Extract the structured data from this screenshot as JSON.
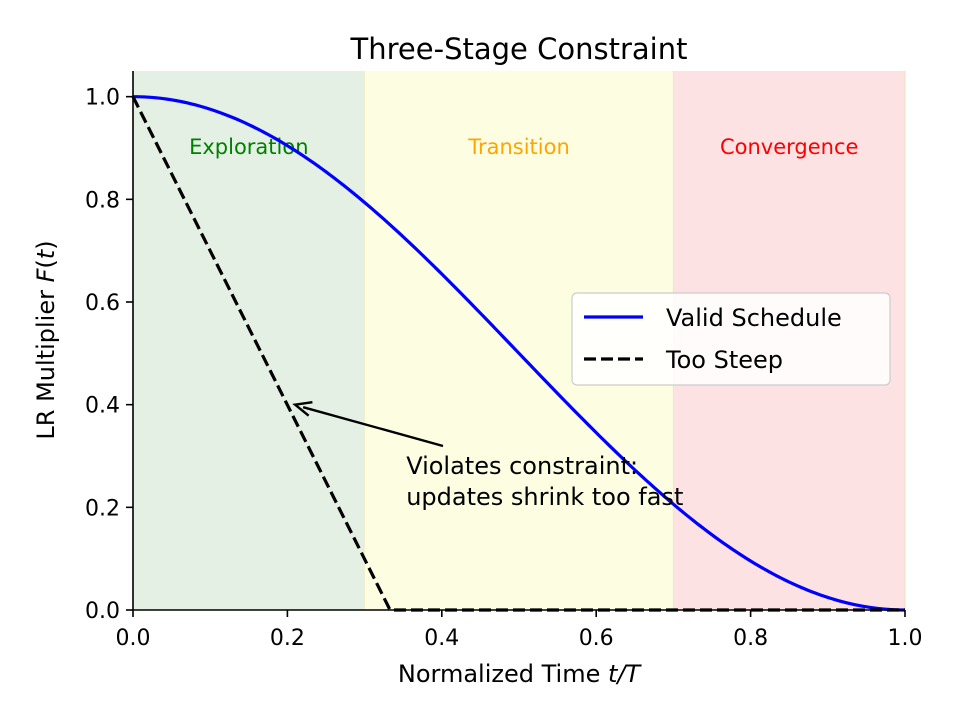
{
  "chart_data": {
    "type": "line",
    "title": "Three-Stage Constraint",
    "xlabel": "Normalized Time t/T",
    "ylabel": "LR Multiplier F(t)",
    "xlim": [
      0.0,
      1.0
    ],
    "ylim": [
      0.0,
      1.05
    ],
    "xticks": [
      "0.0",
      "0.2",
      "0.4",
      "0.6",
      "0.8",
      "1.0"
    ],
    "yticks": [
      "0.0",
      "0.2",
      "0.4",
      "0.6",
      "0.8",
      "1.0"
    ],
    "grid": false,
    "legend_position": "center-right",
    "regions": [
      {
        "label": "Exploration",
        "x0": 0.0,
        "x1": 0.3,
        "fill": "#e3f0e3",
        "text_color": "#008000"
      },
      {
        "label": "Transition",
        "x0": 0.3,
        "x1": 0.7,
        "fill": "#fdfde2",
        "text_color": "#ffa500"
      },
      {
        "label": "Convergence",
        "x0": 0.7,
        "x1": 1.0,
        "fill": "#fde2e4",
        "text_color": "#ff0000"
      }
    ],
    "series": [
      {
        "name": "Valid Schedule",
        "color": "#0000ff",
        "style": "solid",
        "x": [
          0.0,
          0.05,
          0.1,
          0.15,
          0.2,
          0.25,
          0.3,
          0.35,
          0.4,
          0.45,
          0.5,
          0.55,
          0.6,
          0.65,
          0.7,
          0.75,
          0.8,
          0.85,
          0.9,
          0.95,
          1.0
        ],
        "y": [
          1.0,
          0.994,
          0.976,
          0.946,
          0.905,
          0.854,
          0.794,
          0.727,
          0.655,
          0.578,
          0.5,
          0.422,
          0.345,
          0.273,
          0.206,
          0.146,
          0.095,
          0.054,
          0.024,
          0.006,
          0.0
        ]
      },
      {
        "name": "Too Steep",
        "color": "#000000",
        "style": "dashed",
        "x": [
          0.0,
          0.333,
          1.0
        ],
        "y": [
          1.0,
          0.0,
          0.0
        ]
      }
    ],
    "annotation": {
      "lines": [
        "Violates constraint:",
        "updates shrink too fast"
      ],
      "text_x": 0.35,
      "text_y": 0.27,
      "arrow_to_x": 0.21,
      "arrow_to_y": 0.4
    }
  }
}
